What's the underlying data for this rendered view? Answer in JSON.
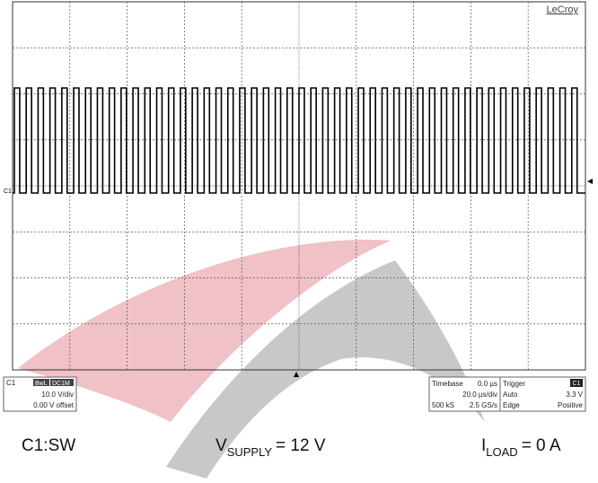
{
  "scope": {
    "brand": "LeCroy",
    "channel_marker": "C1"
  },
  "channel_box": {
    "channel": "C1",
    "bandwidth": "BwL",
    "coupling": "DC1M",
    "scale": "10.0 V/div",
    "offset": "0.00 V offset"
  },
  "timebase_box": {
    "label": "Timebase",
    "delay": "0.0 µs",
    "scale": "20.0 µs/div",
    "samples": "500 kS",
    "rate": "2.5 GS/s"
  },
  "trigger_box": {
    "label": "Trigger",
    "source": "C1",
    "mode": "Auto",
    "level": "3.3 V",
    "type": "Edge",
    "slope": "Positive"
  },
  "caption": {
    "channel": "C1:SW",
    "supply_symbol": "V",
    "supply_sub": "SUPPLY",
    "supply_value": "= 12 V",
    "load_symbol": "I",
    "load_sub": "LOAD",
    "load_value": "= 0 A"
  }
}
